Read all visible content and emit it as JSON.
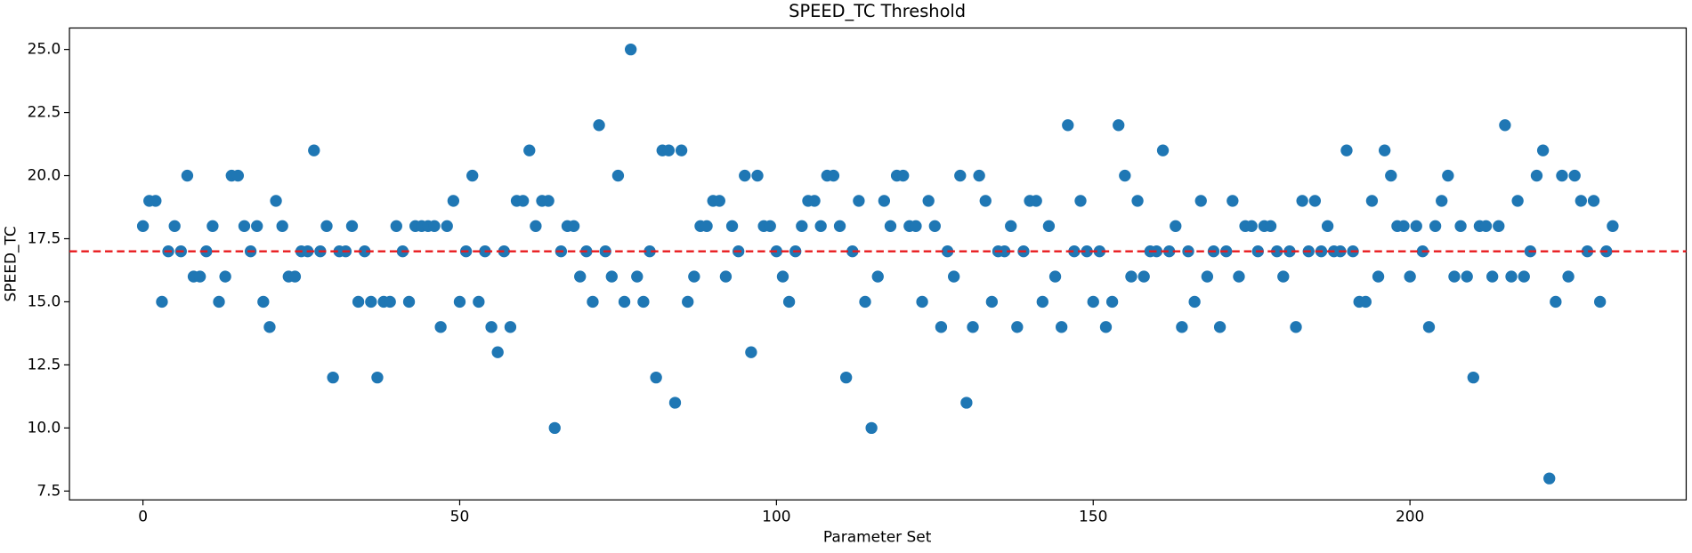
{
  "chart_data": {
    "type": "scatter",
    "title": "SPEED_TC Threshold",
    "x_label": "Parameter Set",
    "y_label": "SPEED_TC",
    "color": "#1f77b4",
    "threshold": 17,
    "threshold_color": "#e8191c",
    "x": [
      0,
      1,
      2,
      3,
      4,
      5,
      6,
      7,
      8,
      9,
      10,
      11,
      12,
      13,
      14,
      15,
      16,
      17,
      18,
      19,
      20,
      21,
      22,
      23,
      24,
      25,
      26,
      27,
      28,
      29,
      30,
      31,
      32,
      33,
      34,
      35,
      36,
      37,
      38,
      39,
      40,
      41,
      42,
      43,
      44,
      45,
      46,
      47,
      48,
      49,
      50,
      51,
      52,
      53,
      54,
      55,
      56,
      57,
      58,
      59,
      60,
      61,
      62,
      63,
      64,
      65,
      66,
      67,
      68,
      69,
      70,
      71,
      72,
      73,
      74,
      75,
      76,
      77,
      78,
      79,
      80,
      81,
      82,
      83,
      84,
      85,
      86,
      87,
      88,
      89,
      90,
      91,
      92,
      93,
      94,
      95,
      96,
      97,
      98,
      99,
      100,
      101,
      102,
      103,
      104,
      105,
      106,
      107,
      108,
      109,
      110,
      111,
      112,
      113,
      114,
      115,
      116,
      117,
      118,
      119,
      120,
      121,
      122,
      123,
      124,
      125,
      126,
      127,
      128,
      129,
      130,
      131,
      132,
      133,
      134,
      135,
      136,
      137,
      138,
      139,
      140,
      141,
      142,
      143,
      144,
      145,
      146,
      147,
      148,
      149,
      150,
      151,
      152,
      153,
      154,
      155,
      156,
      157,
      158,
      159,
      160,
      161,
      162,
      163,
      164,
      165,
      166,
      167,
      168,
      169,
      170,
      171,
      172,
      173,
      174,
      175,
      176,
      177,
      178,
      179,
      180,
      181,
      182,
      183,
      184,
      185,
      186,
      187,
      188,
      189,
      190,
      191,
      192,
      193,
      194,
      195,
      196,
      197,
      198,
      199,
      200,
      201,
      202,
      203,
      204,
      205,
      206,
      207,
      208,
      209,
      210,
      211,
      212,
      213,
      214,
      215,
      216,
      217,
      218,
      219,
      220,
      221,
      222,
      223,
      224,
      225,
      226,
      227,
      228,
      229,
      230,
      231,
      232
    ],
    "values": [
      18,
      19,
      19,
      15,
      17,
      18,
      17,
      20,
      16,
      16,
      17,
      18,
      15,
      16,
      20,
      20,
      18,
      17,
      18,
      15,
      14,
      19,
      18,
      16,
      16,
      17,
      17,
      21,
      17,
      18,
      12,
      17,
      17,
      18,
      15,
      17,
      15,
      12,
      15,
      15,
      18,
      17,
      15,
      18,
      18,
      18,
      18,
      14,
      18,
      19,
      15,
      17,
      20,
      15,
      17,
      14,
      13,
      17,
      14,
      19,
      19,
      21,
      18,
      19,
      19,
      10,
      17,
      18,
      18,
      16,
      17,
      15,
      22,
      17,
      16,
      20,
      15,
      25,
      16,
      15,
      17,
      12,
      21,
      21,
      11,
      21,
      15,
      16,
      18,
      18,
      19,
      19,
      16,
      18,
      17,
      20,
      13,
      20,
      18,
      18,
      17,
      16,
      15,
      17,
      18,
      19,
      19,
      18,
      20,
      20,
      18,
      12,
      17,
      19,
      15,
      10,
      16,
      19,
      18,
      20,
      20,
      18,
      18,
      15,
      19,
      18,
      14,
      17,
      16,
      20,
      11,
      14,
      20,
      19,
      15,
      17,
      17,
      18,
      14,
      17,
      19,
      19,
      15,
      18,
      16,
      14,
      22,
      17,
      19,
      17,
      15,
      17,
      14,
      15,
      22,
      20,
      16,
      19,
      16,
      17,
      17,
      21,
      17,
      18,
      14,
      17,
      15,
      19,
      16,
      17,
      14,
      17,
      19,
      16,
      18,
      18,
      17,
      18,
      18,
      17,
      16,
      17,
      14,
      19,
      17,
      19,
      17,
      18,
      17,
      17,
      21,
      17,
      15,
      15,
      19,
      16,
      21,
      20,
      18,
      18,
      16,
      18,
      17,
      14,
      18,
      19,
      20,
      16,
      18,
      16,
      12,
      18,
      18,
      16,
      18,
      22,
      16,
      19,
      16,
      17,
      20,
      21,
      8,
      15,
      20,
      16,
      20,
      19,
      17,
      19,
      15,
      17,
      18
    ],
    "xlim": [
      -11.6,
      243.6
    ],
    "ylim": [
      7.15,
      25.85
    ],
    "xticks": [
      0,
      50,
      100,
      150,
      200
    ],
    "yticks": [
      7.5,
      {
        "value": 10,
        "label": "10.0"
      },
      12.5,
      {
        "value": 15,
        "label": "15.0"
      },
      17.5,
      {
        "value": 20,
        "label": "20.0"
      },
      22.5,
      {
        "value": 25,
        "label": "25.0"
      }
    ]
  }
}
